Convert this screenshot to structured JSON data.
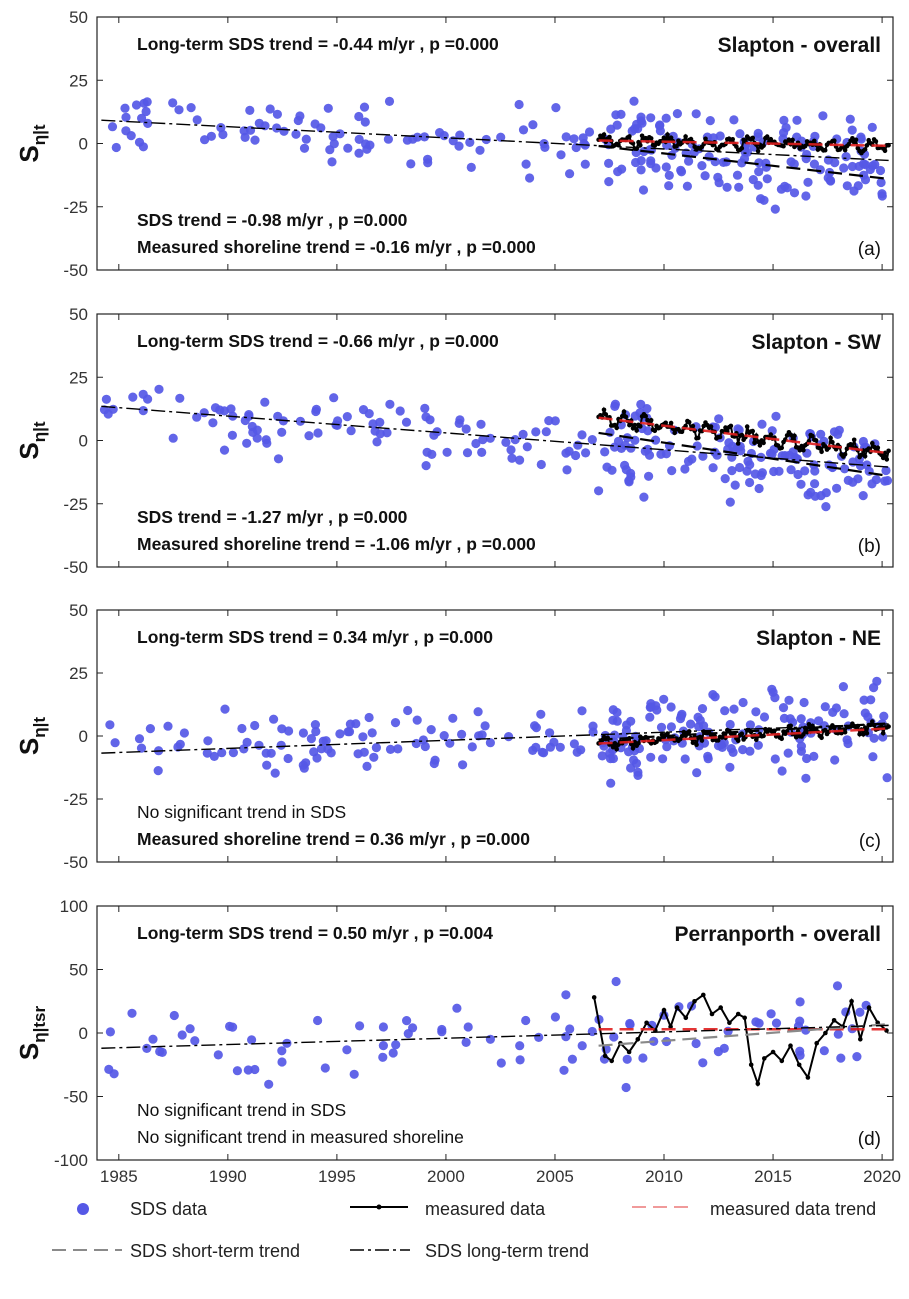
{
  "colors": {
    "sds": "#5558e6",
    "measured": "#000000",
    "measured_trend": "#e02020",
    "sds_short": "#8a8a8a",
    "sds_long": "#000000",
    "frame": "#222222"
  },
  "legend": {
    "sds": "SDS data",
    "measured": "measured data",
    "measured_trend": "measured data trend",
    "sds_short": "SDS short-term trend",
    "sds_long": "SDS long-term trend"
  },
  "chart_data": [
    {
      "type": "scatter",
      "panel": "(a)",
      "title": "Slapton - overall",
      "ylabel_main": "S",
      "ylabel_sub": "η|t",
      "long_term_text": "Long-term SDS trend = -0.44 m/yr , p =0.000",
      "sds_trend_text": "SDS trend = -0.98 m/yr , p =0.000",
      "sds_trend_bold": true,
      "measured_trend_text": "Measured shoreline trend = -0.16 m/yr , p =0.000",
      "measured_trend_bold": true,
      "xlim": [
        1984,
        2020.5
      ],
      "ylim": [
        -50,
        50
      ],
      "yticks": [
        50,
        25,
        0,
        -25,
        -50
      ],
      "long_trend": {
        "x": [
          1984.2,
          2020.3
        ],
        "y": [
          9.2,
          -6.7
        ]
      },
      "short_trend": {
        "x": [
          2007.0,
          2020.3
        ],
        "y": [
          -1.0,
          -14.0
        ]
      },
      "measured_trend": {
        "x": [
          2007.0,
          2020.3
        ],
        "y": [
          1.2,
          -0.9
        ]
      },
      "measured_base": {
        "start": 2007.0,
        "end": 2020.3,
        "v0": 1.2,
        "v1": -0.9,
        "amp": 2.5
      }
    },
    {
      "type": "scatter",
      "panel": "(b)",
      "title": "Slapton - SW",
      "ylabel_main": "S",
      "ylabel_sub": "η|t",
      "long_term_text": "Long-term SDS trend = -0.66 m/yr , p =0.000",
      "sds_trend_text": "SDS trend = -1.27 m/yr , p =0.000",
      "sds_trend_bold": true,
      "measured_trend_text": "Measured shoreline trend = -1.06 m/yr , p =0.000",
      "measured_trend_bold": true,
      "xlim": [
        1984,
        2020.5
      ],
      "ylim": [
        -50,
        50
      ],
      "yticks": [
        50,
        25,
        0,
        -25,
        -50
      ],
      "long_trend": {
        "x": [
          1984.2,
          2020.3
        ],
        "y": [
          13.5,
          -10.5
        ]
      },
      "short_trend": {
        "x": [
          2007.0,
          2020.3
        ],
        "y": [
          3.0,
          -14.0
        ]
      },
      "measured_trend": {
        "x": [
          2007.0,
          2020.3
        ],
        "y": [
          9.0,
          -5.0
        ]
      },
      "measured_base": {
        "start": 2007.0,
        "end": 2020.3,
        "v0": 9.0,
        "v1": -5.0,
        "amp": 3.0
      }
    },
    {
      "type": "scatter",
      "panel": "(c)",
      "title": "Slapton - NE",
      "ylabel_main": "S",
      "ylabel_sub": "η|t",
      "long_term_text": "Long-term SDS trend = 0.34 m/yr , p =0.000",
      "sds_trend_text": "No significant trend in SDS",
      "sds_trend_bold": false,
      "measured_trend_text": "Measured shoreline trend = 0.36 m/yr , p =0.000",
      "measured_trend_bold": true,
      "xlim": [
        1984,
        2020.5
      ],
      "ylim": [
        -50,
        50
      ],
      "yticks": [
        50,
        25,
        0,
        -25,
        -50
      ],
      "long_trend": {
        "x": [
          1984.2,
          2020.3
        ],
        "y": [
          -6.8,
          4.8
        ]
      },
      "short_trend": {
        "x": [
          2007.0,
          2020.3
        ],
        "y": [
          -1.5,
          5.0
        ]
      },
      "measured_trend": {
        "x": [
          2007.0,
          2020.3
        ],
        "y": [
          -3.0,
          3.0
        ]
      },
      "measured_base": {
        "start": 2007.0,
        "end": 2020.3,
        "v0": -3.0,
        "v1": 3.5,
        "amp": 2.5
      }
    },
    {
      "type": "scatter",
      "panel": "(d)",
      "title": "Perranporth - overall",
      "ylabel_main": "S",
      "ylabel_sub": "η|tsr",
      "long_term_text": "Long-term SDS trend = 0.50 m/yr , p =0.004",
      "sds_trend_text": "No significant trend in SDS",
      "sds_trend_bold": false,
      "measured_trend_text": "No significant trend in measured shoreline",
      "measured_trend_bold": false,
      "xlim": [
        1984,
        2020.5
      ],
      "ylim": [
        -100,
        100
      ],
      "yticks": [
        100,
        50,
        0,
        -50,
        -100
      ],
      "xticks": [
        1985,
        1990,
        1995,
        2000,
        2005,
        2010,
        2015,
        2020
      ],
      "long_trend": {
        "x": [
          1984.2,
          2020.3
        ],
        "y": [
          -12.0,
          6.0
        ]
      },
      "short_trend": {
        "x": [
          2007.0,
          2020.3
        ],
        "y": [
          -10.0,
          7.0
        ]
      },
      "measured_trend": {
        "x": [
          2007.0,
          2020.3
        ],
        "y": [
          3.0,
          3.0
        ]
      },
      "measured_series": {
        "x": [
          2006.8,
          2007.3,
          2007.6,
          2008.0,
          2008.4,
          2008.8,
          2009.2,
          2009.6,
          2010.0,
          2010.3,
          2010.6,
          2011.0,
          2011.4,
          2011.8,
          2012.2,
          2012.6,
          2013.0,
          2013.4,
          2013.7,
          2014.0,
          2014.3,
          2014.6,
          2015.0,
          2015.4,
          2015.8,
          2016.2,
          2016.6,
          2017.0,
          2017.4,
          2017.8,
          2018.2,
          2018.6,
          2019.0,
          2019.4,
          2019.8,
          2020.2
        ],
        "y": [
          28,
          -18,
          -22,
          -8,
          -15,
          -5,
          8,
          2,
          18,
          5,
          20,
          12,
          25,
          30,
          15,
          20,
          8,
          15,
          12,
          -25,
          -40,
          -20,
          -15,
          -22,
          -10,
          -25,
          -35,
          -8,
          0,
          10,
          5,
          25,
          -5,
          20,
          8,
          2
        ]
      }
    }
  ]
}
